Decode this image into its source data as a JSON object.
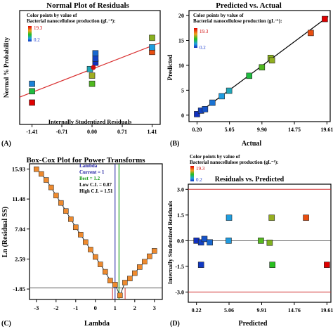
{
  "colorbar": {
    "label": "Color points by value of",
    "label2": "Bacterial nanocellulose production (gL⁻¹):",
    "max": "19.3",
    "min": "0.2"
  },
  "chart_data": [
    {
      "panel": "(A)",
      "type": "scatter",
      "title": "Normal Plot of Residuals",
      "xlabel": "Internally Studentized Residuals",
      "ylabel": "Normal % Probability",
      "xticks": [
        "-1.41",
        "-0.71",
        "0.00",
        "0.71",
        "1.41"
      ],
      "xlim": [
        -1.7,
        1.6
      ],
      "ylim": [
        0,
        100
      ],
      "yticks": [
        1,
        5,
        10,
        20,
        30,
        50,
        70,
        80,
        90,
        95,
        99
      ],
      "points": [
        {
          "x": -1.41,
          "y": 4.8,
          "production": 19.3
        },
        {
          "x": -1.41,
          "y": 13,
          "production": 8.0
        },
        {
          "x": -1.41,
          "y": 22,
          "production": 3.0
        },
        {
          "x": 0.0,
          "y": 22,
          "production": 9.9
        },
        {
          "x": 0.0,
          "y": 35,
          "production": 11.7
        },
        {
          "x": -0.05,
          "y": 47,
          "production": 5.05
        },
        {
          "x": 0.08,
          "y": 59,
          "production": 0.2
        },
        {
          "x": 0.08,
          "y": 66,
          "production": 0.8
        },
        {
          "x": 0.08,
          "y": 75,
          "production": 2.1
        },
        {
          "x": 1.41,
          "y": 77,
          "production": 16.5
        },
        {
          "x": 1.41,
          "y": 83,
          "production": 3.9
        },
        {
          "x": 1.41,
          "y": 92,
          "production": 11.2
        }
      ],
      "fit_line": [
        [
          -1.7,
          8
        ],
        [
          1.6,
          88
        ]
      ],
      "center_point": {
        "x": 0.03,
        "y": 50
      }
    },
    {
      "panel": "(B)",
      "type": "scatter",
      "title": "Predicted vs. Actual",
      "xlabel": "Actual",
      "ylabel": "Predicted",
      "xticks": [
        "0.20",
        "5.05",
        "9.90",
        "14.75",
        "19.61"
      ],
      "xlim": [
        -1.0,
        20.1
      ],
      "ylim": [
        -1.3,
        21
      ],
      "yticks": [
        0,
        5,
        10,
        15,
        20
      ],
      "points": [
        {
          "x": 0.2,
          "y": 0.2,
          "production": 0.2
        },
        {
          "x": 0.8,
          "y": 0.9,
          "production": 0.8
        },
        {
          "x": 1.4,
          "y": 1.2,
          "production": 1.4
        },
        {
          "x": 2.5,
          "y": 2.5,
          "production": 2.5
        },
        {
          "x": 3.9,
          "y": 3.8,
          "production": 3.9
        },
        {
          "x": 5.0,
          "y": 4.9,
          "production": 5.0
        },
        {
          "x": 8.0,
          "y": 7.9,
          "production": 8.0
        },
        {
          "x": 9.9,
          "y": 9.6,
          "production": 9.9
        },
        {
          "x": 11.2,
          "y": 11.5,
          "production": 11.2
        },
        {
          "x": 11.4,
          "y": 11.0,
          "production": 11.4
        },
        {
          "x": 17.2,
          "y": 16.5,
          "production": 16.5
        },
        {
          "x": 19.3,
          "y": 19.3,
          "production": 19.3
        }
      ]
    },
    {
      "panel": "(C)",
      "type": "line",
      "title": "Box-Cox Plot for Power Transforms",
      "xlabel": "Lambda",
      "ylabel": "Ln (Residual SS)",
      "yticks": [
        "15.93",
        "11.48",
        "7.04",
        "2.59",
        "-1.85"
      ],
      "xticks": [
        "-3",
        "-2",
        "-1",
        "0",
        "1",
        "2",
        "3"
      ],
      "xlim": [
        -3.35,
        3.4
      ],
      "ylim": [
        -3.4,
        16.7
      ],
      "legend": {
        "title": "Lambda",
        "current": "Current = 1",
        "best": "Best = 1.2",
        "low": "Low C.I. = 0.87",
        "high": "High C.I. = 1.51"
      },
      "x": [
        -3.0,
        -2.75,
        -2.5,
        -2.25,
        -2.0,
        -1.75,
        -1.5,
        -1.25,
        -1.0,
        -0.75,
        -0.5,
        -0.25,
        0.0,
        0.25,
        0.5,
        0.75,
        1.0,
        1.25,
        1.5,
        1.75,
        2.0,
        2.25,
        2.5,
        2.75,
        3.0
      ],
      "y": [
        15.9,
        15.2,
        14.3,
        13.2,
        12.0,
        10.9,
        9.7,
        8.5,
        7.3,
        6.2,
        5.1,
        4.0,
        2.9,
        1.8,
        0.7,
        -0.6,
        -1.2,
        -2.8,
        -0.9,
        -0.3,
        0.5,
        1.4,
        2.2,
        3.0,
        3.8
      ],
      "threshold_y": -1.7,
      "current": 1.0,
      "best": 1.2,
      "low_ci": 0.87,
      "high_ci": 1.51
    },
    {
      "panel": "(D)",
      "type": "scatter",
      "title": "Residuals vs. Predicted",
      "xlabel": "Predicted",
      "ylabel": "Internally Studentized Residuals",
      "xticks": [
        "0.22",
        "5.06",
        "9.91",
        "14.76",
        "19.61"
      ],
      "yticks": [
        "3.0",
        "1.5",
        "0.0",
        "-1.5",
        "-3.0"
      ],
      "xlim": [
        -1.0,
        20.2
      ],
      "ylim": [
        -3.6,
        3.3
      ],
      "limits": [
        3.0,
        -3.0
      ],
      "points": [
        {
          "x": 0.22,
          "y": 0.0,
          "production": 0.2
        },
        {
          "x": 0.9,
          "y": -0.1,
          "production": 0.8
        },
        {
          "x": 1.4,
          "y": 0.1,
          "production": 1.4
        },
        {
          "x": 2.2,
          "y": -0.1,
          "production": 2.1
        },
        {
          "x": 0.9,
          "y": -1.41,
          "production": 0.5
        },
        {
          "x": 5.06,
          "y": 1.34,
          "production": 4.0
        },
        {
          "x": 5.0,
          "y": 0.0,
          "production": 3.8
        },
        {
          "x": 9.8,
          "y": 0.0,
          "production": 10.0
        },
        {
          "x": 11.1,
          "y": -0.12,
          "production": 11.0
        },
        {
          "x": 11.4,
          "y": 1.34,
          "production": 11.5
        },
        {
          "x": 11.5,
          "y": -1.41,
          "production": 9.0
        },
        {
          "x": 16.5,
          "y": 1.34,
          "production": 16.5
        },
        {
          "x": 19.61,
          "y": -1.41,
          "production": 19.3
        }
      ]
    }
  ]
}
